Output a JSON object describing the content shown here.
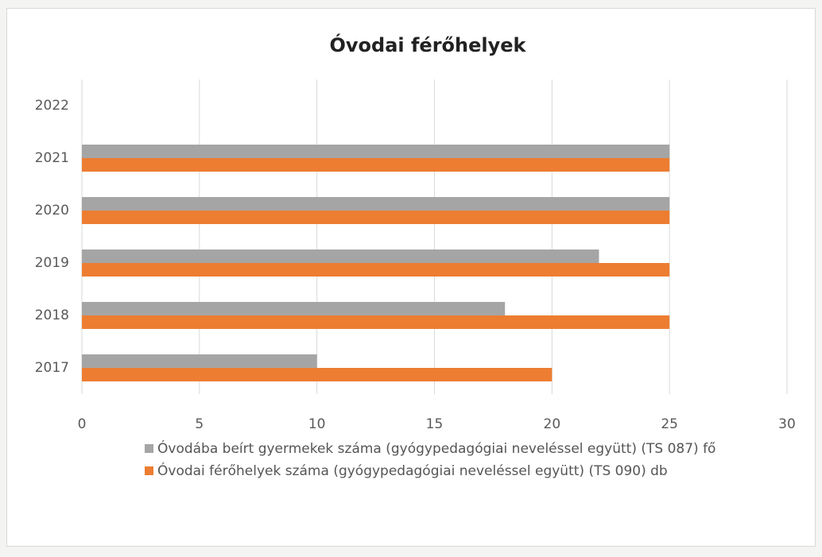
{
  "chart_data": {
    "type": "hbar",
    "title": "Óvodai férőhelyek",
    "categories": [
      "2017",
      "2018",
      "2019",
      "2020",
      "2021",
      "2022"
    ],
    "series": [
      {
        "name": "Óvodába beírt gyermekek száma (gyógypedagógiai neveléssel együtt) (TS 087) fő",
        "color": "#a5a5a5",
        "values": [
          10,
          18,
          22,
          25,
          25,
          null
        ]
      },
      {
        "name": "Óvodai férőhelyek száma (gyógypedagógiai neveléssel együtt) (TS 090) db",
        "color": "#ed7d31",
        "values": [
          20,
          25,
          25,
          25,
          25,
          null
        ]
      }
    ],
    "xlim": [
      0,
      30
    ],
    "xticks": [
      0,
      5,
      10,
      15,
      20,
      25,
      30
    ],
    "grid": true,
    "legend": "bottom"
  }
}
